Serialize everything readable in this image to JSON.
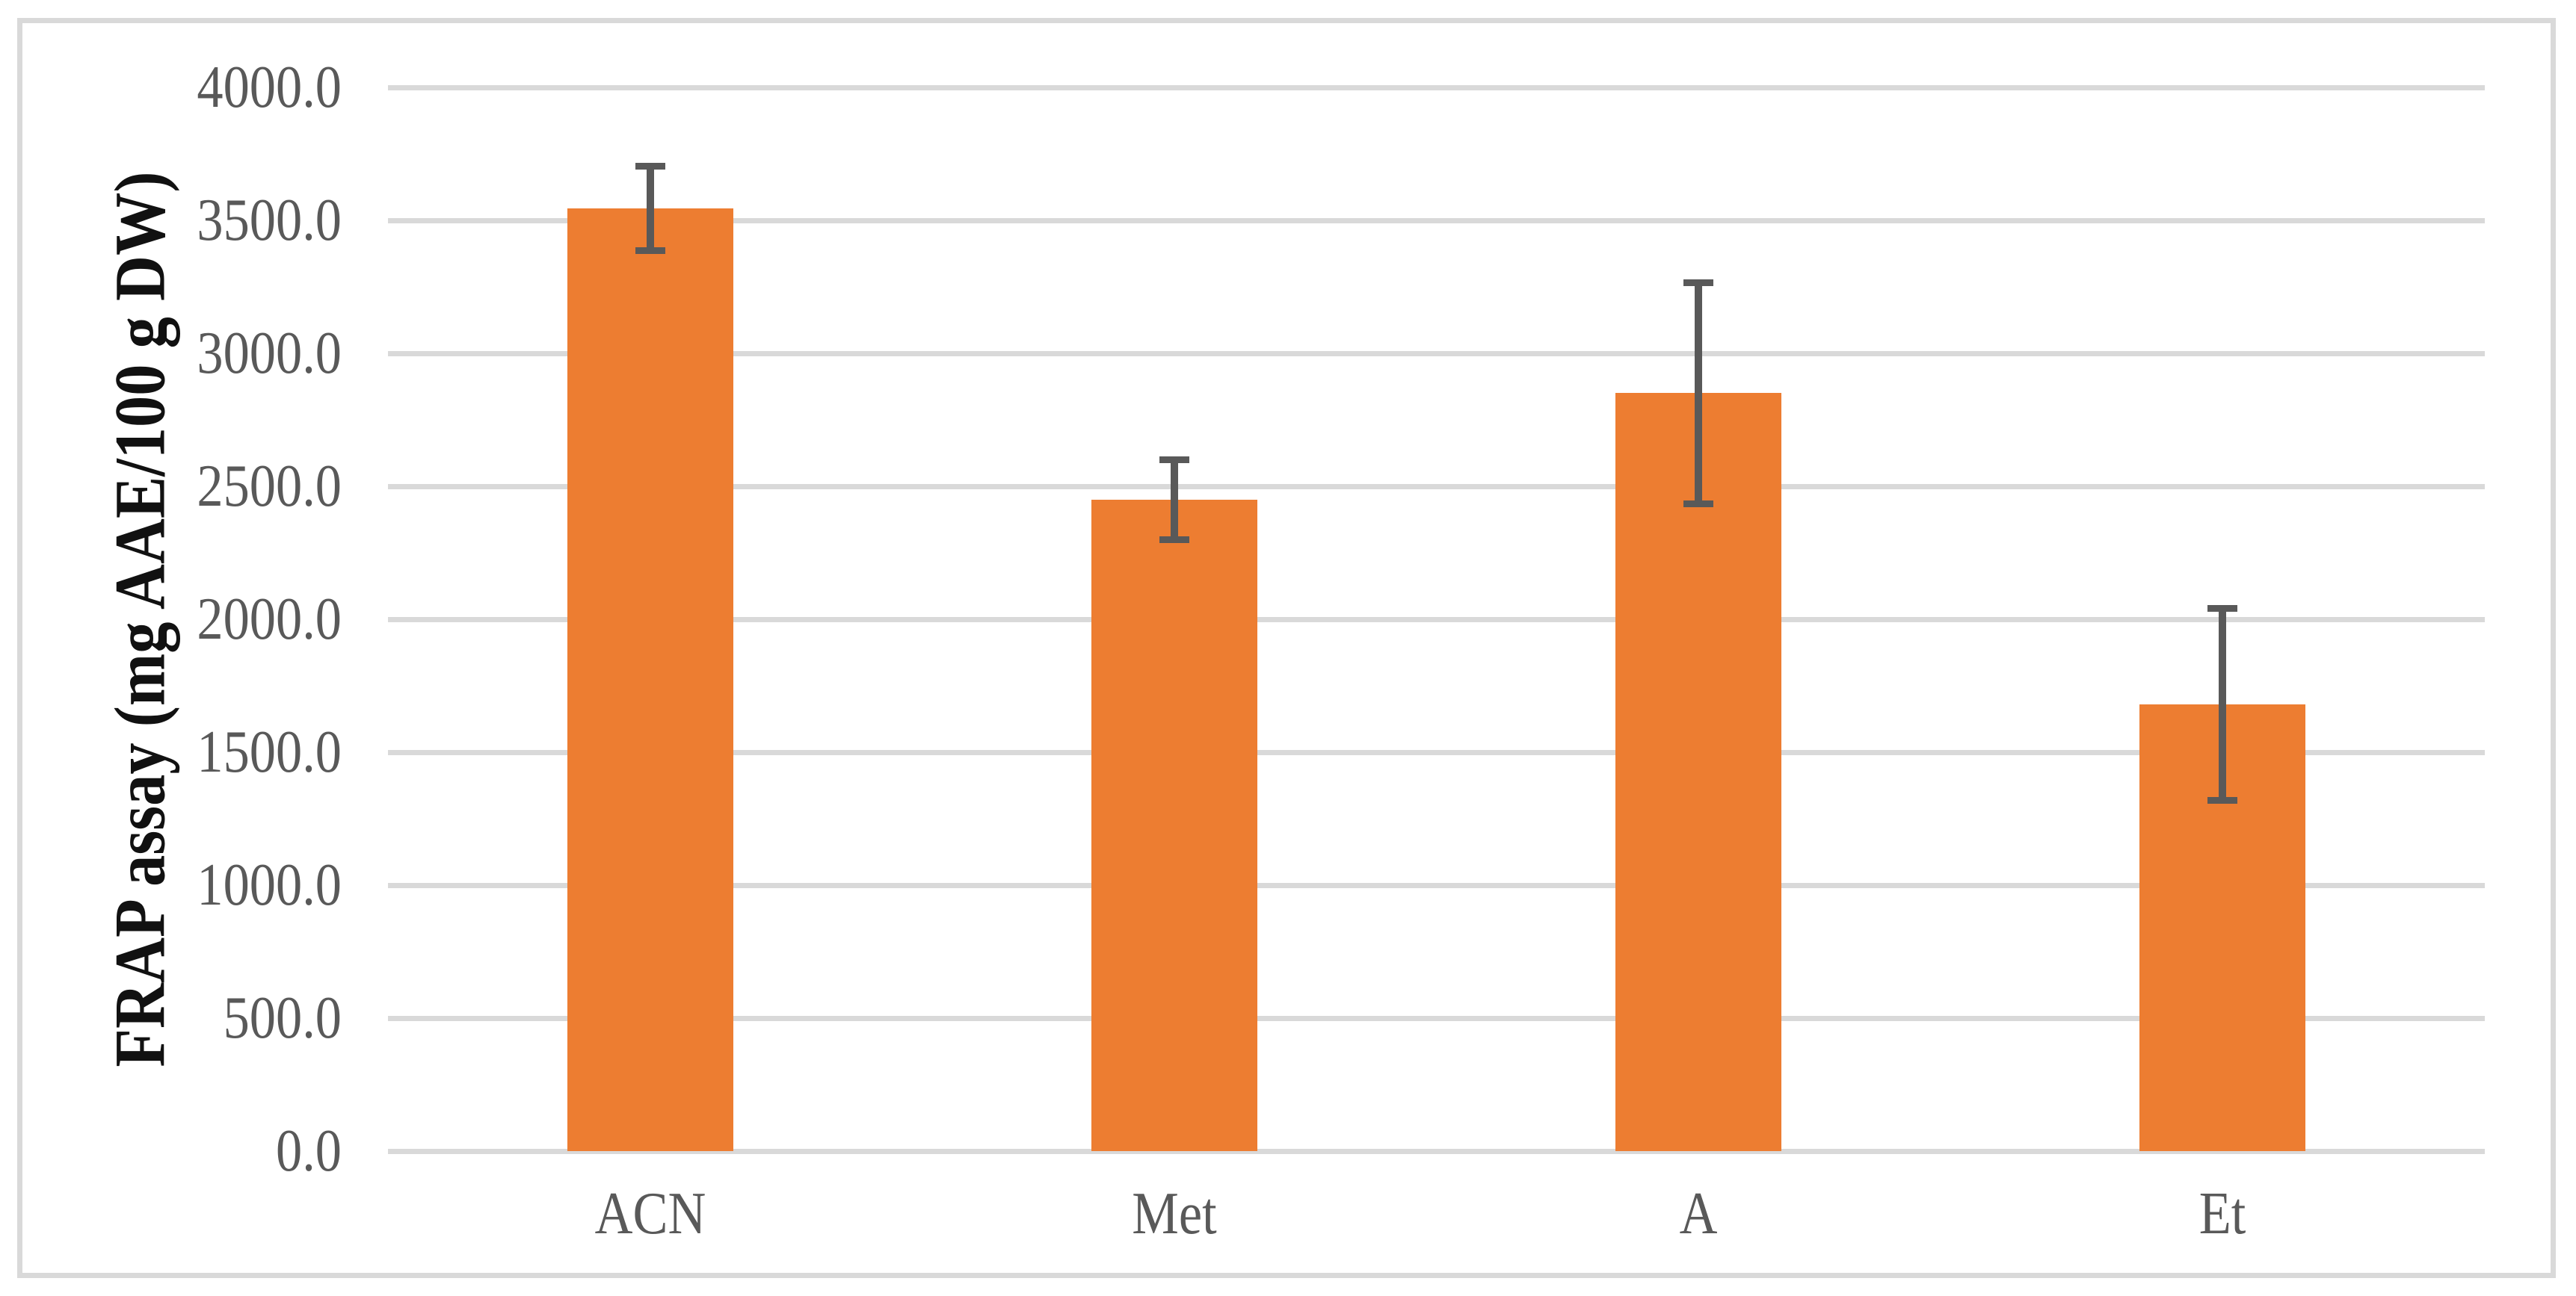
{
  "figure": {
    "background": "#FFFFFF",
    "border_color": "#D9D9D9"
  },
  "chart_data": {
    "type": "bar",
    "title": "",
    "xlabel": "",
    "ylabel": "FRAP assay (mg AAE/100 g DW)",
    "categories": [
      "ACN",
      "Met",
      "A",
      "Et"
    ],
    "values": [
      3545,
      2450,
      2850,
      1680
    ],
    "error_bars": {
      "type": "symmetric",
      "values": [
        160,
        150,
        415,
        360
      ]
    },
    "ylim": [
      0,
      4000
    ],
    "ytick_step": 500,
    "ytick_labels": [
      "0.0",
      "500.0",
      "1000.0",
      "1500.0",
      "2000.0",
      "2500.0",
      "3000.0",
      "3500.0",
      "4000.0"
    ],
    "grid": true,
    "legend": false,
    "colors": {
      "bar": "#ED7D31",
      "error_bar": "#595959",
      "gridline": "#D9D9D9",
      "tick_label": "#595959",
      "axis_label": "#111111"
    }
  }
}
